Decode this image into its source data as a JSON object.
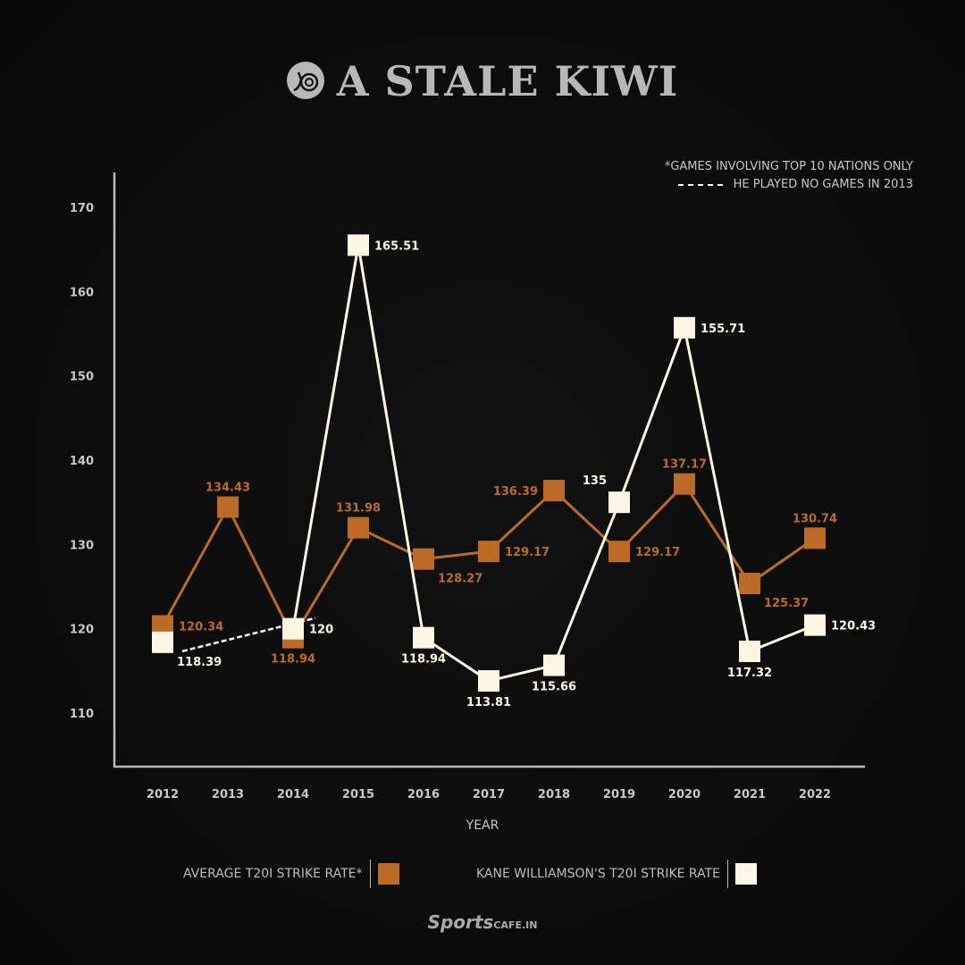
{
  "title": "A STALE KIWI",
  "notes": [
    "*GAMES INVOLVING TOP 10 NATIONS ONLY",
    "HE PLAYED NO GAMES IN 2013"
  ],
  "brand": {
    "main": "Sports",
    "suffix": "CAFE.IN"
  },
  "chart_data": {
    "type": "line",
    "title": "A STALE KIWI",
    "xlabel": "YEAR",
    "ylabel": "",
    "ylim": [
      110,
      170
    ],
    "yticks": [
      110,
      120,
      130,
      140,
      150,
      160,
      170
    ],
    "categories": [
      "2012",
      "2013",
      "2014",
      "2015",
      "2016",
      "2017",
      "2018",
      "2019",
      "2020",
      "2021",
      "2022"
    ],
    "grid": false,
    "legend_placement": "bottom",
    "series": [
      {
        "name": "AVERAGE T20I STRIKE RATE*",
        "color": "#bb6b25",
        "values": [
          120.34,
          134.43,
          118.94,
          131.98,
          128.27,
          129.17,
          136.39,
          129.17,
          137.17,
          125.37,
          130.74
        ]
      },
      {
        "name": "KANE WILLIAMSON'S T20I STRIKE RATE",
        "color": "#fdf7e3",
        "values": [
          118.39,
          null,
          120,
          165.51,
          118.94,
          113.81,
          115.66,
          135,
          155.71,
          117.32,
          120.43
        ]
      }
    ]
  }
}
